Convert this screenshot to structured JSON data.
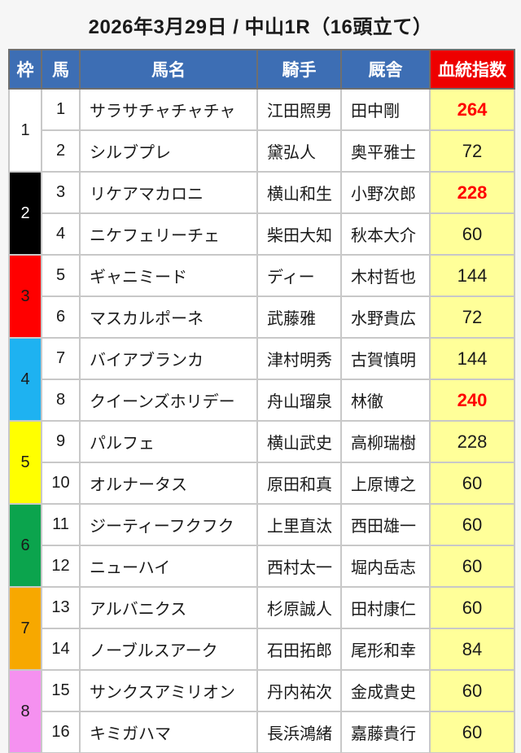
{
  "title": "2026年3月29日 / 中山1R（16頭立て）",
  "colors": {
    "header_blue": "#3d6eb4",
    "header_red": "#ee0000",
    "index_cell_yellow": "#ffff99",
    "index_value_red": "#ff0000"
  },
  "table": {
    "headers": {
      "frame": "枠",
      "number": "馬",
      "name": "馬名",
      "jockey": "騎手",
      "stable": "厩舎",
      "index": "血統指数"
    },
    "frames": [
      {
        "no": "1",
        "bg": "#ffffff",
        "fg": "#1a1a1a"
      },
      {
        "no": "2",
        "bg": "#000000",
        "fg": "#ffffff"
      },
      {
        "no": "3",
        "bg": "#ff0000",
        "fg": "#1a1a1a"
      },
      {
        "no": "4",
        "bg": "#1eb2f1",
        "fg": "#1a1a1a"
      },
      {
        "no": "5",
        "bg": "#ffff00",
        "fg": "#1a1a1a"
      },
      {
        "no": "6",
        "bg": "#0ba44d",
        "fg": "#1a1a1a"
      },
      {
        "no": "7",
        "bg": "#f7a800",
        "fg": "#1a1a1a"
      },
      {
        "no": "8",
        "bg": "#f591f0",
        "fg": "#1a1a1a"
      }
    ],
    "rows": [
      {
        "number": "1",
        "name": "サラサチャチャチャ",
        "jockey": "江田照男",
        "stable": "田中剛",
        "index": "264",
        "index_red": true
      },
      {
        "number": "2",
        "name": "シルブプレ",
        "jockey": "黛弘人",
        "stable": "奥平雅士",
        "index": "72",
        "index_red": false
      },
      {
        "number": "3",
        "name": "リケアマカロニ",
        "jockey": "横山和生",
        "stable": "小野次郎",
        "index": "228",
        "index_red": true
      },
      {
        "number": "4",
        "name": "ニケフェリーチェ",
        "jockey": "柴田大知",
        "stable": "秋本大介",
        "index": "60",
        "index_red": false
      },
      {
        "number": "5",
        "name": "ギャニミード",
        "jockey": "ディー",
        "stable": "木村哲也",
        "index": "144",
        "index_red": false
      },
      {
        "number": "6",
        "name": "マスカルポーネ",
        "jockey": "武藤雅",
        "stable": "水野貴広",
        "index": "72",
        "index_red": false
      },
      {
        "number": "7",
        "name": "バイアブランカ",
        "jockey": "津村明秀",
        "stable": "古賀慎明",
        "index": "144",
        "index_red": false
      },
      {
        "number": "8",
        "name": "クイーンズホリデー",
        "jockey": "舟山瑠泉",
        "stable": "林徹",
        "index": "240",
        "index_red": true
      },
      {
        "number": "9",
        "name": "パルフェ",
        "jockey": "横山武史",
        "stable": "高柳瑞樹",
        "index": "228",
        "index_red": false
      },
      {
        "number": "10",
        "name": "オルナータス",
        "jockey": "原田和真",
        "stable": "上原博之",
        "index": "60",
        "index_red": false
      },
      {
        "number": "11",
        "name": "ジーティーフクフク",
        "jockey": "上里直汰",
        "stable": "西田雄一",
        "index": "60",
        "index_red": false
      },
      {
        "number": "12",
        "name": "ニューハイ",
        "jockey": "西村太一",
        "stable": "堀内岳志",
        "index": "60",
        "index_red": false
      },
      {
        "number": "13",
        "name": "アルバニクス",
        "jockey": "杉原誠人",
        "stable": "田村康仁",
        "index": "60",
        "index_red": false
      },
      {
        "number": "14",
        "name": "ノーブルスアーク",
        "jockey": "石田拓郎",
        "stable": "尾形和幸",
        "index": "84",
        "index_red": false
      },
      {
        "number": "15",
        "name": "サンクスアミリオン",
        "jockey": "丹内祐次",
        "stable": "金成貴史",
        "index": "60",
        "index_red": false
      },
      {
        "number": "16",
        "name": "キミガハマ",
        "jockey": "長浜鴻緒",
        "stable": "嘉藤貴行",
        "index": "60",
        "index_red": false
      }
    ]
  }
}
